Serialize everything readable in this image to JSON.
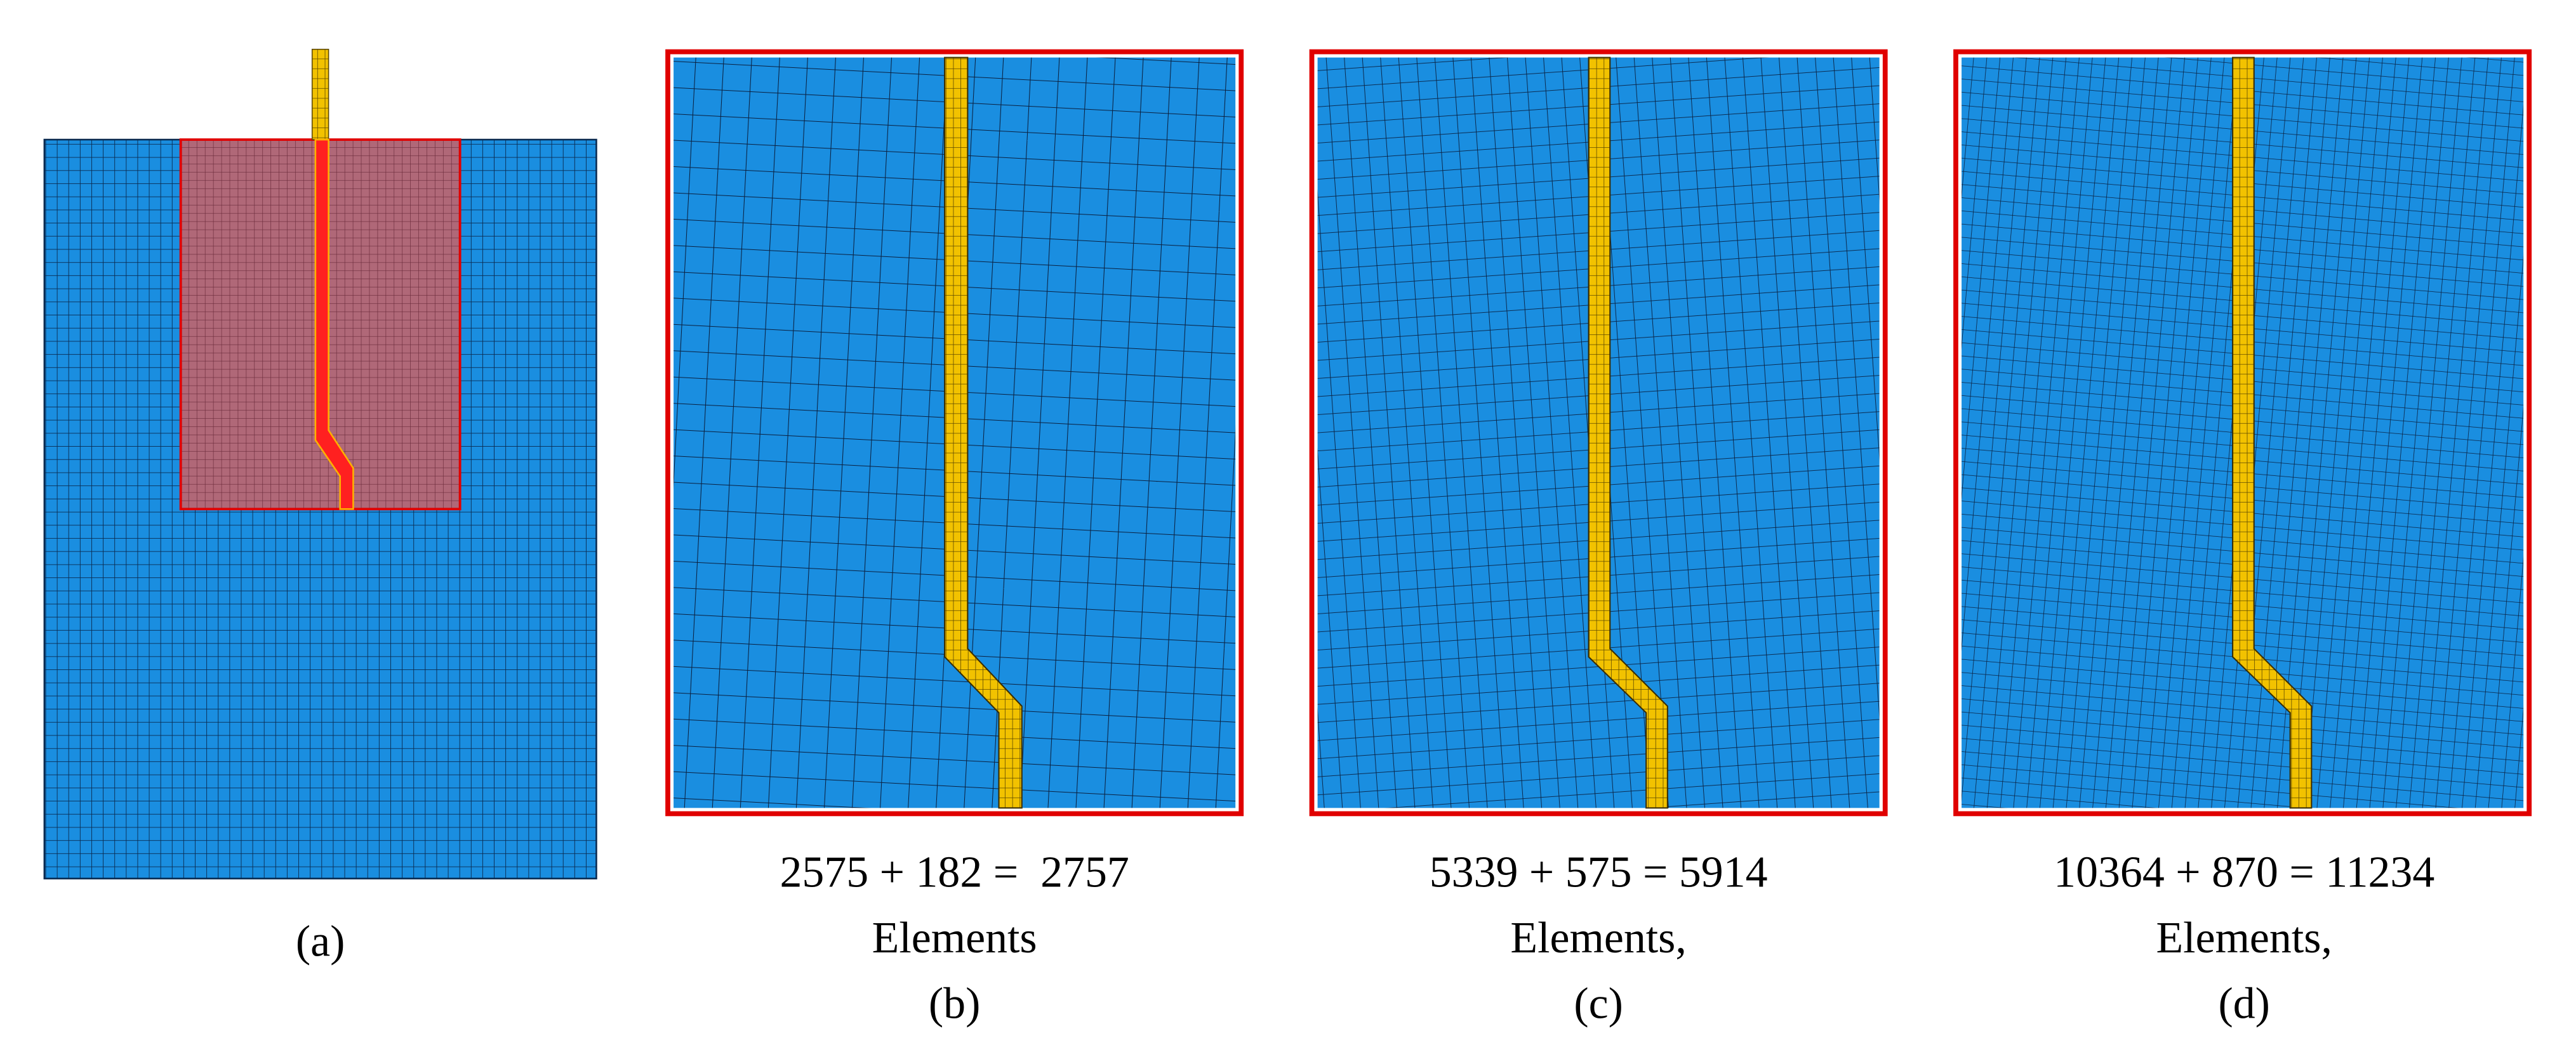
{
  "panels": [
    {
      "label": "(a)"
    },
    {
      "caption": [
        "2575 + 182 =  2757",
        "Elements"
      ],
      "label": "(b)"
    },
    {
      "caption": [
        "5339 + 575 = 5914",
        "Elements,"
      ],
      "label": "(c)"
    },
    {
      "caption": [
        "10364 + 870 = 11234",
        "Elements,"
      ],
      "label": "(d)"
    }
  ]
}
